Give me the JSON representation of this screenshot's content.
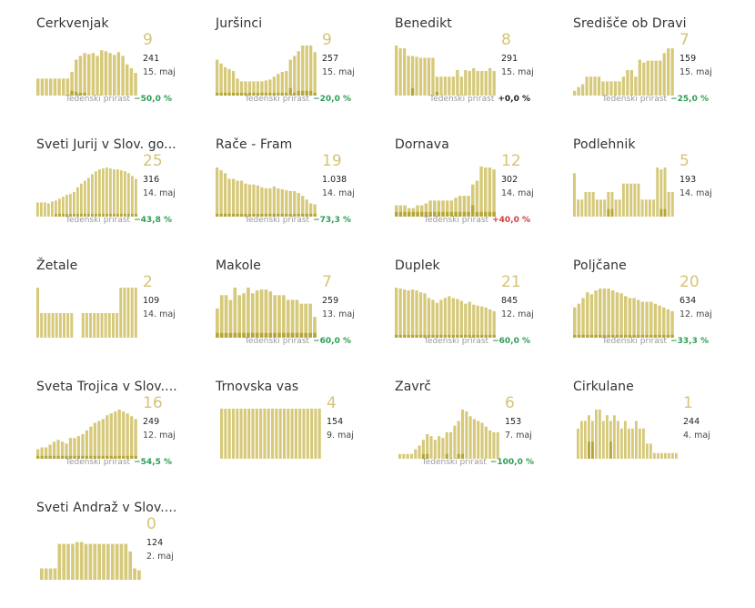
{
  "growth_label": "Tedenski prirast",
  "colors": {
    "bar": "#d6c97a",
    "highlight": "#b5a636",
    "big_number": "#d4c476",
    "good": "#2e9d55",
    "bad": "#d33c3c",
    "neutral": "#222222"
  },
  "chart_data": [
    {
      "type": "bar",
      "title": "Cerkvenjak",
      "value": "9",
      "total": "241",
      "date": "15. maj",
      "growth": "−50,0 %",
      "growth_status": "good",
      "bars": [
        18,
        18,
        18,
        18,
        18,
        18,
        18,
        18,
        25,
        38,
        42,
        45,
        44,
        45,
        42,
        48,
        47,
        45,
        43,
        46,
        42,
        33,
        29,
        24
      ],
      "highlights": [
        0,
        0,
        0,
        0,
        0,
        0,
        0,
        0,
        5,
        4,
        3,
        3,
        0,
        0,
        0,
        0,
        0,
        0,
        0,
        0,
        0,
        0,
        0,
        0
      ]
    },
    {
      "type": "bar",
      "title": "Juršinci",
      "value": "9",
      "total": "257",
      "date": "15. maj",
      "growth": "−20,0 %",
      "growth_status": "neutral_good",
      "bars": [
        38,
        34,
        30,
        28,
        26,
        18,
        15,
        15,
        15,
        15,
        15,
        15,
        16,
        17,
        20,
        23,
        25,
        26,
        38,
        42,
        47,
        53,
        53,
        53,
        46
      ],
      "highlights": [
        3,
        3,
        3,
        3,
        3,
        3,
        3,
        3,
        3,
        3,
        3,
        3,
        3,
        3,
        3,
        3,
        3,
        3,
        8,
        3,
        5,
        5,
        5,
        5,
        3
      ]
    },
    {
      "type": "bar",
      "title": "Benedikt",
      "value": "8",
      "total": "291",
      "date": "15. maj",
      "growth": "+0,0 %",
      "growth_status": "neutral",
      "bars": [
        53,
        50,
        50,
        42,
        42,
        41,
        40,
        40,
        40,
        40,
        20,
        20,
        20,
        20,
        20,
        27,
        20,
        27,
        26,
        29,
        26,
        26,
        26,
        29,
        26
      ],
      "highlights": [
        0,
        0,
        0,
        0,
        8,
        0,
        0,
        0,
        0,
        0,
        4,
        0,
        0,
        0,
        0,
        0,
        0,
        0,
        0,
        0,
        0,
        0,
        0,
        0,
        0
      ]
    },
    {
      "type": "bar",
      "title": "Središče ob Dravi",
      "value": "7",
      "total": "159",
      "date": "15. maj",
      "growth": "−25,0 %",
      "growth_status": "good",
      "bars": [
        5,
        9,
        12,
        20,
        20,
        20,
        20,
        15,
        15,
        15,
        15,
        15,
        20,
        27,
        27,
        20,
        38,
        35,
        37,
        37,
        37,
        37,
        45,
        50,
        50
      ],
      "highlights": [
        0,
        0,
        0,
        0,
        0,
        0,
        0,
        0,
        0,
        0,
        0,
        0,
        0,
        0,
        0,
        0,
        0,
        0,
        0,
        0,
        0,
        0,
        0,
        0,
        0
      ]
    },
    {
      "type": "bar",
      "title": "Sveti Jurij v Slov. go...",
      "value": "25",
      "total": "316",
      "date": "14. maj",
      "growth": "−43,8 %",
      "growth_status": "good",
      "bars": [
        15,
        15,
        15,
        14,
        16,
        17,
        19,
        21,
        23,
        24,
        26,
        31,
        35,
        38,
        41,
        45,
        48,
        50,
        51,
        52,
        51,
        50,
        50,
        49,
        48,
        46,
        43,
        40
      ],
      "highlights": [
        0,
        0,
        0,
        0,
        0,
        3,
        3,
        3,
        3,
        3,
        3,
        3,
        3,
        3,
        3,
        3,
        3,
        3,
        3,
        3,
        3,
        3,
        3,
        3,
        3,
        3,
        3,
        3
      ]
    },
    {
      "type": "bar",
      "title": "Rače - Fram",
      "value": "19",
      "total": "1.038",
      "date": "14. maj",
      "growth": "−73,3 %",
      "growth_status": "good",
      "bars": [
        52,
        49,
        46,
        40,
        40,
        38,
        38,
        35,
        34,
        34,
        33,
        31,
        30,
        30,
        32,
        30,
        29,
        28,
        27,
        27,
        25,
        22,
        18,
        14,
        13
      ],
      "highlights": [
        3,
        3,
        3,
        3,
        3,
        3,
        3,
        3,
        3,
        3,
        3,
        3,
        3,
        3,
        3,
        3,
        3,
        3,
        3,
        3,
        3,
        3,
        3,
        3,
        3
      ]
    },
    {
      "type": "bar",
      "title": "Dornava",
      "value": "12",
      "total": "302",
      "date": "14. maj",
      "growth": "+40,0 %",
      "growth_status": "bad",
      "bars": [
        12,
        12,
        12,
        9,
        9,
        12,
        12,
        14,
        17,
        17,
        17,
        17,
        17,
        17,
        20,
        22,
        22,
        22,
        34,
        38,
        55,
        52,
        52,
        50
      ],
      "highlights": [
        5,
        5,
        5,
        5,
        5,
        5,
        5,
        5,
        5,
        5,
        5,
        5,
        5,
        5,
        5,
        5,
        5,
        5,
        12,
        5,
        5,
        5,
        5,
        5
      ]
    },
    {
      "type": "bar",
      "title": "Podlehnik",
      "value": "5",
      "total": "193",
      "date": "14. maj",
      "growth": "",
      "growth_status": "neutral",
      "bars": [
        46,
        18,
        18,
        26,
        26,
        26,
        18,
        18,
        18,
        26,
        26,
        18,
        18,
        35,
        35,
        35,
        35,
        35,
        18,
        18,
        18,
        18,
        52,
        50,
        52,
        26,
        26
      ],
      "highlights": [
        0,
        0,
        0,
        0,
        0,
        0,
        0,
        0,
        0,
        8,
        8,
        0,
        0,
        0,
        0,
        0,
        0,
        0,
        0,
        0,
        0,
        0,
        0,
        8,
        8,
        0,
        0
      ]
    },
    {
      "type": "bar",
      "title": "Žetale",
      "value": "2",
      "total": "109",
      "date": "14. maj",
      "growth": "",
      "growth_status": "neutral",
      "bars": [
        53,
        26,
        26,
        26,
        26,
        26,
        26,
        26,
        26,
        26,
        0,
        0,
        26,
        26,
        26,
        26,
        26,
        26,
        26,
        26,
        26,
        26,
        53,
        53,
        53,
        53,
        53
      ],
      "highlights": [
        0,
        0,
        0,
        0,
        0,
        0,
        0,
        0,
        0,
        0,
        0,
        0,
        0,
        0,
        0,
        0,
        0,
        0,
        0,
        0,
        0,
        0,
        0,
        0,
        0,
        0,
        0
      ]
    },
    {
      "type": "bar",
      "title": "Makole",
      "value": "7",
      "total": "259",
      "date": "13. maj",
      "growth": "−60,0 %",
      "growth_status": "good",
      "bars": [
        31,
        45,
        45,
        40,
        53,
        45,
        47,
        53,
        47,
        50,
        51,
        51,
        49,
        45,
        45,
        45,
        40,
        40,
        40,
        36,
        36,
        36,
        22
      ],
      "highlights": [
        5,
        5,
        5,
        5,
        5,
        5,
        5,
        5,
        5,
        5,
        5,
        5,
        5,
        5,
        5,
        5,
        5,
        5,
        5,
        5,
        5,
        5,
        5
      ]
    },
    {
      "type": "bar",
      "title": "Duplek",
      "value": "21",
      "total": "845",
      "date": "12. maj",
      "growth": "−60,0 %",
      "growth_status": "good",
      "bars": [
        53,
        52,
        51,
        50,
        51,
        50,
        48,
        47,
        42,
        40,
        37,
        40,
        42,
        44,
        42,
        41,
        39,
        36,
        38,
        35,
        34,
        33,
        32,
        30,
        28
      ],
      "highlights": [
        3,
        3,
        3,
        3,
        3,
        3,
        3,
        3,
        3,
        3,
        3,
        3,
        3,
        3,
        3,
        3,
        3,
        3,
        3,
        3,
        3,
        3,
        3,
        3,
        3
      ]
    },
    {
      "type": "bar",
      "title": "Poljčane",
      "value": "20",
      "total": "634",
      "date": "12. maj",
      "growth": "−33,3 %",
      "growth_status": "good",
      "bars": [
        32,
        36,
        42,
        48,
        46,
        50,
        52,
        52,
        52,
        50,
        48,
        47,
        44,
        42,
        42,
        40,
        38,
        38,
        38,
        36,
        34,
        32,
        30,
        28
      ],
      "highlights": [
        3,
        3,
        3,
        3,
        3,
        3,
        3,
        3,
        3,
        3,
        3,
        3,
        3,
        3,
        3,
        3,
        3,
        3,
        3,
        3,
        3,
        3,
        3,
        3
      ]
    },
    {
      "type": "bar",
      "title": "Sveta Trojica v Slov....",
      "value": "16",
      "total": "249",
      "date": "12. maj",
      "growth": "−54,5 %",
      "growth_status": "good",
      "bars": [
        10,
        12,
        12,
        15,
        18,
        20,
        18,
        16,
        22,
        22,
        24,
        26,
        30,
        34,
        38,
        40,
        42,
        46,
        48,
        50,
        52,
        50,
        48,
        45,
        42
      ],
      "highlights": [
        3,
        3,
        3,
        3,
        3,
        3,
        3,
        3,
        3,
        3,
        3,
        3,
        3,
        3,
        3,
        3,
        3,
        3,
        3,
        3,
        3,
        3,
        3,
        3,
        3
      ]
    },
    {
      "type": "bar",
      "title": "Trnovska vas",
      "value": "4",
      "total": "154",
      "date": "9. maj",
      "growth": "",
      "growth_status": "neutral",
      "bars": [
        53,
        53,
        53,
        53,
        53,
        53,
        53,
        53,
        53,
        53,
        53,
        53,
        53,
        53,
        53,
        53,
        53,
        53,
        53,
        53,
        53,
        53,
        53,
        53,
        53,
        53
      ],
      "highlights": [
        0,
        0,
        0,
        0,
        0,
        0,
        0,
        0,
        0,
        0,
        0,
        0,
        0,
        0,
        0,
        0,
        0,
        0,
        0,
        0,
        0,
        0,
        0,
        0,
        0,
        0
      ]
    },
    {
      "type": "bar",
      "title": "Zavrč",
      "value": "6",
      "total": "153",
      "date": "7. maj",
      "growth": "−100,0 %",
      "growth_status": "good",
      "bars": [
        5,
        5,
        5,
        5,
        10,
        14,
        20,
        26,
        24,
        20,
        24,
        22,
        28,
        28,
        35,
        40,
        52,
        50,
        45,
        42,
        40,
        38,
        34,
        30,
        28,
        28
      ],
      "highlights": [
        0,
        0,
        0,
        0,
        0,
        0,
        5,
        5,
        0,
        0,
        0,
        0,
        5,
        0,
        0,
        5,
        5,
        0,
        0,
        0,
        0,
        0,
        0,
        0,
        0,
        0
      ]
    },
    {
      "type": "bar",
      "title": "Cirkulane",
      "value": "1",
      "total": "244",
      "date": "4. maj",
      "growth": "",
      "growth_status": "neutral",
      "bars": [
        32,
        40,
        40,
        46,
        40,
        52,
        52,
        40,
        46,
        40,
        46,
        40,
        32,
        40,
        32,
        32,
        40,
        32,
        32,
        16,
        16,
        6,
        6,
        6,
        6,
        6,
        6,
        6
      ],
      "highlights": [
        0,
        0,
        0,
        18,
        18,
        0,
        0,
        0,
        0,
        18,
        0,
        0,
        0,
        0,
        0,
        0,
        0,
        0,
        0,
        0,
        0,
        0,
        0,
        0,
        0,
        0,
        0,
        0
      ]
    },
    {
      "type": "bar",
      "title": "Sveti Andraž v Slov....",
      "value": "0",
      "total": "124",
      "date": "2. maj",
      "growth": "",
      "growth_status": "neutral",
      "bars": [
        12,
        12,
        12,
        12,
        38,
        38,
        38,
        38,
        40,
        40,
        38,
        38,
        38,
        38,
        38,
        38,
        38,
        38,
        38,
        38,
        30,
        12,
        10
      ],
      "highlights": [
        0,
        0,
        0,
        0,
        0,
        0,
        0,
        0,
        0,
        0,
        0,
        0,
        0,
        0,
        0,
        0,
        0,
        0,
        0,
        0,
        0,
        0,
        0
      ]
    }
  ]
}
